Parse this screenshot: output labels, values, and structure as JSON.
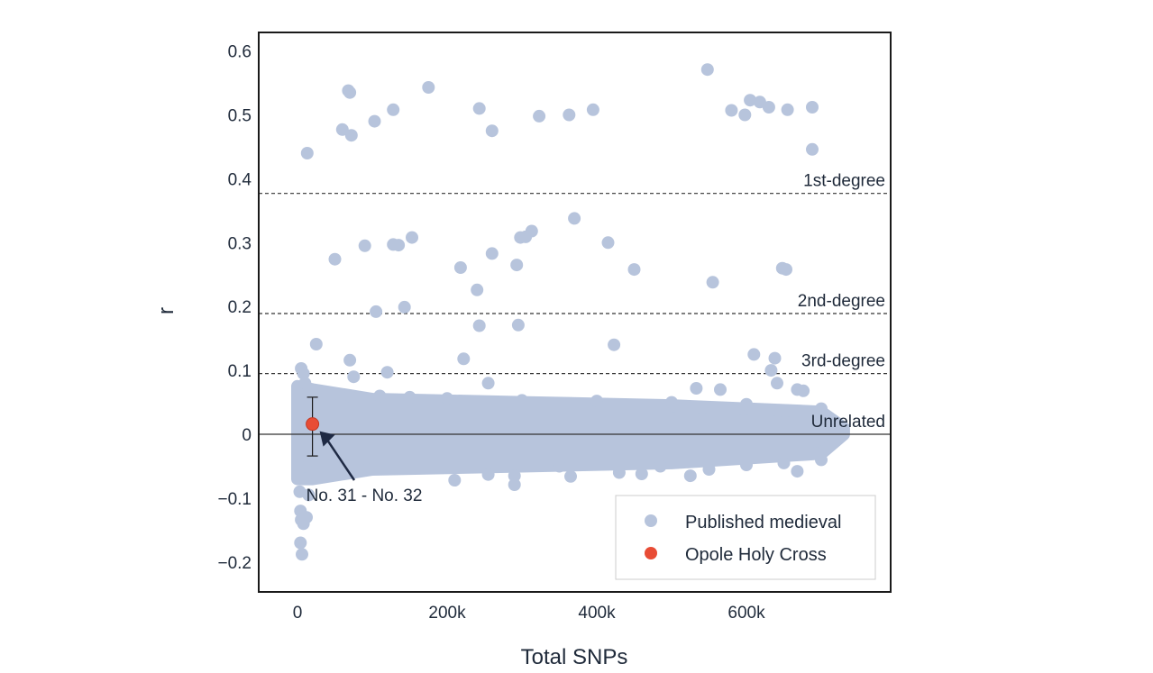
{
  "chart_data": {
    "type": "scatter",
    "xlabel": "Total SNPs",
    "ylabel": "r",
    "xlim": [
      -50000,
      790000
    ],
    "ylim": [
      -0.25,
      0.63
    ],
    "x_ticks": [
      {
        "value": 0,
        "label": "0"
      },
      {
        "value": 200000,
        "label": "200k"
      },
      {
        "value": 400000,
        "label": "400k"
      },
      {
        "value": 600000,
        "label": "600k"
      }
    ],
    "y_ticks": [
      {
        "value": 0.6,
        "label": "0.6"
      },
      {
        "value": 0.5,
        "label": "0.5"
      },
      {
        "value": 0.4,
        "label": "0.4"
      },
      {
        "value": 0.3,
        "label": "0.3"
      },
      {
        "value": 0.2,
        "label": "0.2"
      },
      {
        "value": 0.1,
        "label": "0.1"
      },
      {
        "value": 0,
        "label": "0"
      },
      {
        "value": -0.1,
        "label": "−0.1"
      },
      {
        "value": -0.2,
        "label": "−0.2"
      }
    ],
    "grid": false,
    "reference_lines": [
      {
        "y": 0.377,
        "label": "1st-degree",
        "style": "dashed"
      },
      {
        "y": 0.189,
        "label": "2nd-degree",
        "style": "dashed"
      },
      {
        "y": 0.095,
        "label": "3rd-degree",
        "style": "dashed"
      },
      {
        "y": 0.0,
        "label": "Unrelated",
        "style": "solid"
      }
    ],
    "legend": {
      "position": "bottom-right",
      "entries": [
        {
          "name": "Published medieval",
          "color": "#b7c4dc"
        },
        {
          "name": "Opole Holy Cross",
          "color": "#e84c35"
        }
      ]
    },
    "series": [
      {
        "name": "Published medieval",
        "color": "#b7c4dc",
        "points": [
          [
            13000,
            0.44
          ],
          [
            60000,
            0.477
          ],
          [
            68000,
            0.538
          ],
          [
            70000,
            0.535
          ],
          [
            72000,
            0.468
          ],
          [
            103000,
            0.49
          ],
          [
            128000,
            0.508
          ],
          [
            175000,
            0.543
          ],
          [
            243000,
            0.51
          ],
          [
            260000,
            0.475
          ],
          [
            323000,
            0.498
          ],
          [
            363000,
            0.5
          ],
          [
            395000,
            0.508
          ],
          [
            548000,
            0.571
          ],
          [
            580000,
            0.507
          ],
          [
            598000,
            0.5
          ],
          [
            605000,
            0.523
          ],
          [
            618000,
            0.52
          ],
          [
            630000,
            0.512
          ],
          [
            655000,
            0.508
          ],
          [
            688000,
            0.512
          ],
          [
            688000,
            0.446
          ],
          [
            50000,
            0.274
          ],
          [
            90000,
            0.295
          ],
          [
            128000,
            0.297
          ],
          [
            135000,
            0.296
          ],
          [
            153000,
            0.308
          ],
          [
            218000,
            0.261
          ],
          [
            240000,
            0.226
          ],
          [
            260000,
            0.283
          ],
          [
            293000,
            0.265
          ],
          [
            298000,
            0.308
          ],
          [
            305000,
            0.309
          ],
          [
            313000,
            0.318
          ],
          [
            370000,
            0.338
          ],
          [
            415000,
            0.3
          ],
          [
            450000,
            0.258
          ],
          [
            555000,
            0.238
          ],
          [
            648000,
            0.26
          ],
          [
            653000,
            0.258
          ],
          [
            105000,
            0.192
          ],
          [
            143000,
            0.199
          ],
          [
            243000,
            0.17
          ],
          [
            295000,
            0.171
          ],
          [
            25000,
            0.141
          ],
          [
            70000,
            0.116
          ],
          [
            75000,
            0.09
          ],
          [
            120000,
            0.097
          ],
          [
            222000,
            0.118
          ],
          [
            255000,
            0.08
          ],
          [
            423000,
            0.14
          ],
          [
            533000,
            0.072
          ],
          [
            565000,
            0.07
          ],
          [
            610000,
            0.125
          ],
          [
            633000,
            0.1
          ],
          [
            638000,
            0.119
          ],
          [
            641000,
            0.08
          ],
          [
            668000,
            0.07
          ],
          [
            676000,
            0.068
          ],
          [
            5000,
            0.103
          ],
          [
            8000,
            0.095
          ],
          [
            10000,
            0.08
          ],
          [
            15000,
            0.068
          ],
          [
            70000,
            0.06
          ],
          [
            110000,
            0.06
          ],
          [
            150000,
            0.058
          ],
          [
            200000,
            0.056
          ],
          [
            300000,
            0.053
          ],
          [
            400000,
            0.052
          ],
          [
            500000,
            0.05
          ],
          [
            600000,
            0.047
          ],
          [
            700000,
            0.04
          ],
          [
            2000,
            -0.05
          ],
          [
            3000,
            -0.09
          ],
          [
            4000,
            -0.12
          ],
          [
            5000,
            -0.134
          ],
          [
            8000,
            -0.14
          ],
          [
            12000,
            -0.13
          ],
          [
            4000,
            -0.17
          ],
          [
            6000,
            -0.188
          ],
          [
            15000,
            -0.095
          ],
          [
            20000,
            -0.06
          ],
          [
            210000,
            -0.072
          ],
          [
            255000,
            -0.063
          ],
          [
            290000,
            -0.065
          ],
          [
            290000,
            -0.079
          ],
          [
            350000,
            -0.05
          ],
          [
            365000,
            -0.066
          ],
          [
            430000,
            -0.06
          ],
          [
            460000,
            -0.062
          ],
          [
            485000,
            -0.05
          ],
          [
            525000,
            -0.065
          ],
          [
            550000,
            -0.055
          ],
          [
            600000,
            -0.048
          ],
          [
            650000,
            -0.045
          ],
          [
            668000,
            -0.058
          ],
          [
            700000,
            -0.04
          ]
        ],
        "dense_band": {
          "description": "dense cluster of overlapping points",
          "x_range": [
            0,
            730000
          ],
          "upper": [
            [
              0,
              0.075
            ],
            [
              20000,
              0.07
            ],
            [
              100000,
              0.055
            ],
            [
              300000,
              0.05
            ],
            [
              500000,
              0.045
            ],
            [
              700000,
              0.035
            ],
            [
              730000,
              0.01
            ]
          ],
          "lower": [
            [
              0,
              -0.07
            ],
            [
              20000,
              -0.07
            ],
            [
              100000,
              -0.055
            ],
            [
              300000,
              -0.05
            ],
            [
              500000,
              -0.045
            ],
            [
              700000,
              -0.03
            ],
            [
              730000,
              0.0
            ]
          ]
        }
      },
      {
        "name": "Opole Holy Cross",
        "color": "#e84c35",
        "points": [
          [
            20000,
            0.016
          ]
        ],
        "error_bars": [
          [
            -0.034,
            0.058
          ]
        ]
      }
    ],
    "annotations": [
      {
        "text": "No. 31 - No. 32",
        "x": 20000,
        "y": 0.016,
        "arrow": true
      }
    ]
  }
}
